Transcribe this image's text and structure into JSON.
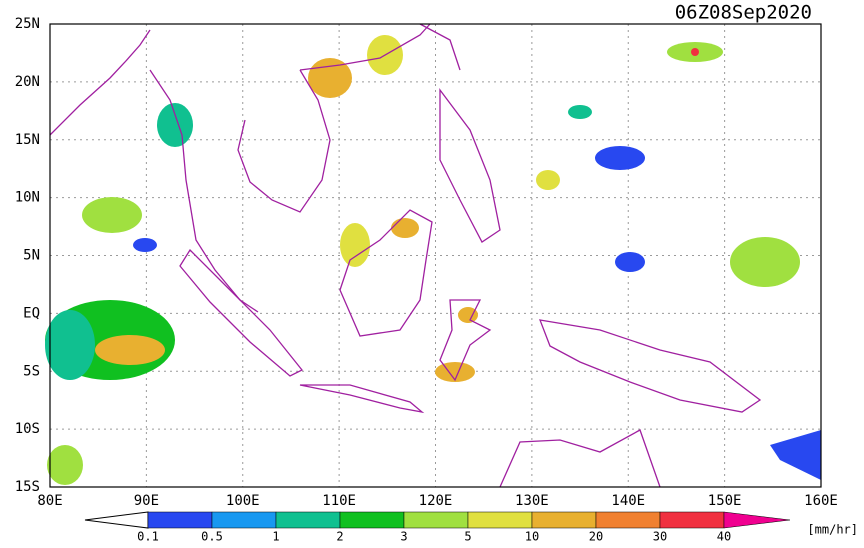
{
  "header": {
    "title": "06Z08Sep2020"
  },
  "map": {
    "lon_labels": [
      "80E",
      "90E",
      "100E",
      "110E",
      "120E",
      "130E",
      "140E",
      "150E",
      "160E"
    ],
    "lat_labels": [
      "25N",
      "20N",
      "15N",
      "10N",
      "5N",
      "EQ",
      "5S",
      "10S",
      "15S"
    ]
  },
  "legend": {
    "labels": [
      "0.1",
      "0.5",
      "1",
      "2",
      "3",
      "5",
      "10",
      "20",
      "30",
      "40"
    ],
    "colors": [
      "#ffffff",
      "#2848f0",
      "#1898f0",
      "#10c090",
      "#10c020",
      "#a0e040",
      "#e0e040",
      "#e8b030",
      "#f08030",
      "#f03040",
      "#f00090"
    ],
    "unit": "[mm/hr]"
  }
}
